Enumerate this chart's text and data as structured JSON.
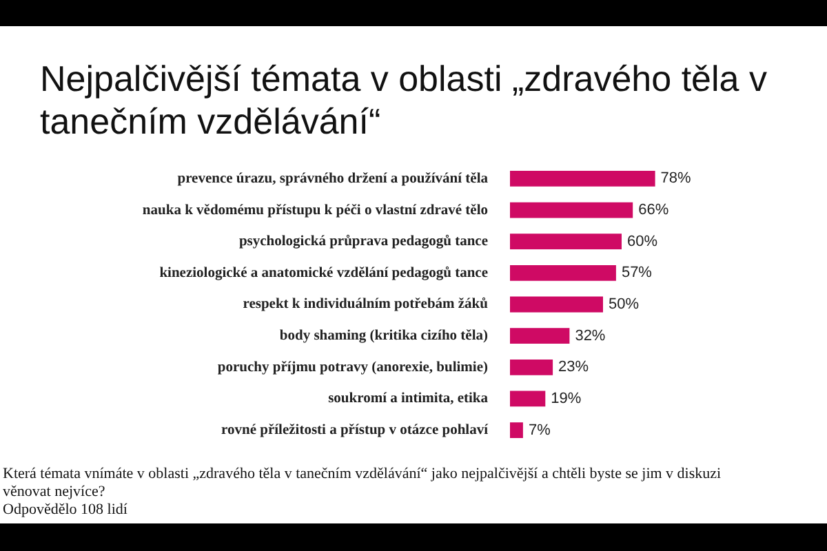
{
  "chart_data": {
    "type": "bar",
    "orientation": "horizontal",
    "title": "Nejpalčivější témata v oblasti „zdravého těla v tanečním vzdělávání“",
    "categories": [
      "prevence úrazu, správného držení a používání těla",
      "nauka k vědomému přístupu k péči o vlastní zdravé tělo",
      "psychologická průprava pedagogů tance",
      "kineziologické a anatomické vzdělání pedagogů tance",
      "respekt k individuálním potřebám žáků",
      "body shaming (kritika cizího těla)",
      "poruchy příjmu potravy (anorexie, bulimie)",
      "soukromí a intimita, etika",
      "rovné příležitosti a přístup v otázce pohlaví"
    ],
    "values": [
      78,
      66,
      60,
      57,
      50,
      32,
      23,
      19,
      7
    ],
    "value_labels": [
      "78%",
      "66%",
      "60%",
      "57%",
      "50%",
      "32%",
      "23%",
      "19%",
      "7%"
    ],
    "color": "#cf0a64",
    "tick_labels": "y",
    "annotations": [
      "Která témata vnímáte v oblasti „zdravého těla v tanečním vzdělávání“ jako nejpalčivější a chtěli byste se jim v diskuzi věnovat nejvíce?",
      "Odpovědělo 108 lidí"
    ]
  }
}
